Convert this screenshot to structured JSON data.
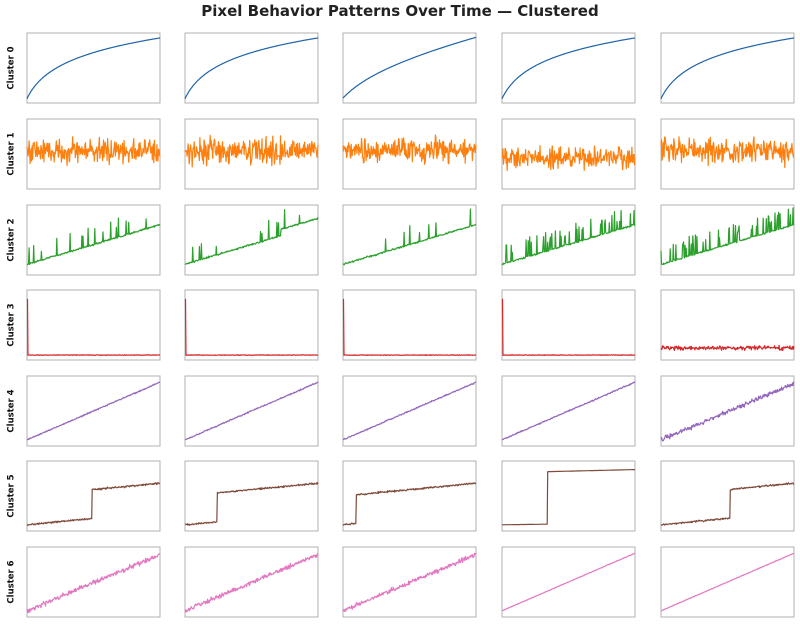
{
  "title": "Pixel Behavior Patterns Over Time — Clustered",
  "chart_data": {
    "type": "line",
    "title": "Pixel Behavior Patterns Over Time — Clustered",
    "xlabel": "",
    "ylabel": "",
    "axes_ticks": "hidden",
    "grid": false,
    "legend": "none",
    "rows": 7,
    "columns": 5,
    "row_labels": [
      "Cluster 0",
      "Cluster 1",
      "Cluster 2",
      "Cluster 3",
      "Cluster 4",
      "Cluster 5",
      "Cluster 6"
    ],
    "colors": [
      "#1f63a8",
      "#ff7f0e",
      "#2ca02c",
      "#d62728",
      "#9467bd",
      "#7f4a3a",
      "#e377c2"
    ],
    "patterns": [
      "logarithmic growth",
      "high-amplitude noise around constant level",
      "linear trend with upward spikes",
      "initial spike then flat low level",
      "linear increase with small noise",
      "linear trend with one step jump",
      "linear increase with noise"
    ],
    "panels": [
      [
        "log",
        "log",
        "log-linear",
        "log",
        "log"
      ],
      [
        "noise",
        "noise",
        "noise",
        "noise-wide",
        "noise"
      ],
      [
        "trend-spikes",
        "trend-spikes-steps",
        "trend-spikes-sparse",
        "trend-spikes-dense",
        "trend-spikes-dense"
      ],
      [
        "spike-flat",
        "spike-flat",
        "spike-flat",
        "spike-flat",
        "flat-noisy"
      ],
      [
        "linear",
        "linear",
        "linear",
        "linear",
        "linear-noisy"
      ],
      [
        "step-mid",
        "step-early",
        "step-very-early",
        "step-clean",
        "step-late"
      ],
      [
        "linear-noisy",
        "linear-noisy",
        "linear-noisy",
        "linear-clean",
        "linear-clean"
      ]
    ]
  }
}
